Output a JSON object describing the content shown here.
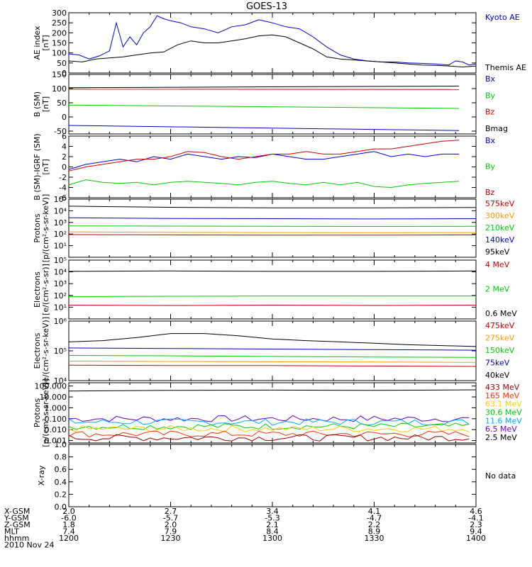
{
  "title": "GOES-13",
  "panels": [
    {
      "id": "ae",
      "ylabel": [
        "AE index",
        "[nT]"
      ],
      "ylim": [
        0,
        300
      ],
      "scale": "linear",
      "yticks": [
        "0",
        "50",
        "100",
        "150",
        "200",
        "250",
        "300"
      ],
      "ytick_values": [
        0,
        50,
        100,
        150,
        200,
        250,
        300
      ],
      "legend": [
        {
          "label": "Kyoto AE",
          "color": "#0000cc"
        },
        {
          "label": "Themis AE",
          "color": "#000000"
        }
      ]
    },
    {
      "id": "b",
      "ylabel": [
        "B (SM)",
        "[nT]"
      ],
      "ylim": [
        -60,
        150
      ],
      "scale": "linear",
      "yticks": [
        "-50",
        "0",
        "50",
        "100",
        "150"
      ],
      "ytick_values": [
        -50,
        0,
        50,
        100,
        150
      ],
      "legend": [
        {
          "label": "Bx",
          "color": "#0000cc"
        },
        {
          "label": "By",
          "color": "#00cc00"
        },
        {
          "label": "Bz",
          "color": "#cc0000"
        },
        {
          "label": "Bmag",
          "color": "#000000"
        }
      ]
    },
    {
      "id": "db",
      "ylabel": [
        "B (SM)-IGRF (SM)",
        "[nT]"
      ],
      "ylim": [
        -6,
        6
      ],
      "scale": "linear",
      "yticks": [
        "-6",
        "-4",
        "-2",
        "0",
        "2",
        "4",
        "6"
      ],
      "ytick_values": [
        -6,
        -4,
        -2,
        0,
        2,
        4,
        6
      ],
      "legend": [
        {
          "label": "Bx",
          "color": "#0000cc"
        },
        {
          "label": "By",
          "color": "#00cc00"
        },
        {
          "label": "Bz",
          "color": "#cc0000"
        }
      ]
    },
    {
      "id": "protons_low",
      "ylabel": [
        "Protons",
        "[p/(cm²-s-sr-keV)]"
      ],
      "ylim": [
        1,
        100000
      ],
      "scale": "log",
      "yticks": [
        "10¹",
        "10²",
        "10³",
        "10⁴",
        "10⁵"
      ],
      "ytick_values": [
        10,
        100,
        1000,
        10000,
        100000
      ],
      "legend": [
        {
          "label": "575keV",
          "color": "#cc0000"
        },
        {
          "label": "300keV",
          "color": "#ff9900"
        },
        {
          "label": "210keV",
          "color": "#00cc00"
        },
        {
          "label": "140keV",
          "color": "#0000cc"
        },
        {
          "label": "95keV",
          "color": "#000000"
        }
      ]
    },
    {
      "id": "electrons_mev",
      "ylabel": [
        "Electrons",
        "[e/(cm²-s-sr)]"
      ],
      "ylim": [
        1,
        100000
      ],
      "scale": "log",
      "yticks": [
        "10¹",
        "10²",
        "10³",
        "10⁴",
        "10⁵"
      ],
      "ytick_values": [
        10,
        100,
        1000,
        10000,
        100000
      ],
      "legend": [
        {
          "label": "4 MeV",
          "color": "#cc0000"
        },
        {
          "label": "2 MeV",
          "color": "#00cc00"
        },
        {
          "label": "0.6 MeV",
          "color": "#000000"
        }
      ]
    },
    {
      "id": "electrons_kev",
      "ylabel": [
        "Electrons",
        "[e/(cm²-s-sr-keV)]"
      ],
      "ylim": [
        10000,
        1000000
      ],
      "scale": "log",
      "yticks": [
        "10⁴",
        "10⁵",
        "10⁶"
      ],
      "ytick_values": [
        10000,
        100000,
        1000000
      ],
      "legend": [
        {
          "label": "475keV",
          "color": "#cc0000"
        },
        {
          "label": "275keV",
          "color": "#ff9900"
        },
        {
          "label": "150keV",
          "color": "#00cc00"
        },
        {
          "label": "75keV",
          "color": "#0000cc"
        },
        {
          "label": "40keV",
          "color": "#000000"
        }
      ]
    },
    {
      "id": "protons_high",
      "ylabel": [
        "Protons",
        "[p/(cm²-s-sr-keV)]"
      ],
      "ylim": [
        0.0006,
        200
      ],
      "scale": "log",
      "yticks": [
        "0.001",
        "0.010",
        "0.100",
        "1.000",
        "10.000",
        "100.000"
      ],
      "ytick_values": [
        0.001,
        0.01,
        0.1,
        1,
        10,
        100
      ],
      "legend": [
        {
          "label": "433 MeV",
          "color": "#990000"
        },
        {
          "label": "165 MeV",
          "color": "#ff3300"
        },
        {
          "label": "63.1 MeV",
          "color": "#ffcc00"
        },
        {
          "label": "30.6 MeV",
          "color": "#00cc00"
        },
        {
          "label": "11.6 MeV",
          "color": "#00aaff"
        },
        {
          "label": "6.5 MeV",
          "color": "#6600cc"
        },
        {
          "label": "2.5 MeV",
          "color": "#000000"
        }
      ]
    },
    {
      "id": "xray",
      "ylabel": [
        "X-ray"
      ],
      "ylim": [
        0,
        1
      ],
      "scale": "linear",
      "yticks": [
        "0.0",
        "0.2",
        "0.4",
        "0.6",
        "0.8",
        "1.0"
      ],
      "ytick_values": [
        0,
        0.2,
        0.4,
        0.6,
        0.8,
        1
      ],
      "legend": [
        {
          "label": "No data",
          "color": "#000000"
        }
      ]
    }
  ],
  "footer": {
    "rows": [
      {
        "label": "X-GSM",
        "values": [
          "2.0",
          "2.7",
          "3.4",
          "4.1",
          "4.6"
        ]
      },
      {
        "label": "Y-GSM",
        "values": [
          "-6.0",
          "-5.7",
          "-5.3",
          "-4.7",
          "-4.1"
        ]
      },
      {
        "label": "Z-GSM",
        "values": [
          "1.8",
          "2.0",
          "2.1",
          "2.2",
          "2.3"
        ]
      },
      {
        "label": "MLT",
        "values": [
          "7.4",
          "7.9",
          "8.4",
          "8.9",
          "9.4"
        ]
      },
      {
        "label": "hhmm",
        "values": [
          "1200",
          "1230",
          "1300",
          "1330",
          "1400"
        ]
      }
    ],
    "date": "2010 Nov 24"
  },
  "chart_data": {
    "type": "line",
    "title": "GOES-13",
    "time_hhmm": [
      "1200",
      "1230",
      "1300",
      "1330",
      "1400"
    ],
    "x_minutes_since_1200": [
      0,
      30,
      60,
      90,
      120
    ],
    "panels": {
      "ae": {
        "series": [
          {
            "name": "Kyoto AE",
            "x": [
              0,
              3,
              6,
              9,
              12,
              14,
              16,
              18,
              20,
              22,
              24,
              26,
              28,
              30,
              33,
              36,
              40,
              44,
              48,
              52,
              56,
              60,
              64,
              68,
              72,
              76,
              80,
              84,
              88,
              92,
              96,
              100,
              104,
              108,
              112,
              114,
              116,
              118,
              120
            ],
            "y": [
              95,
              90,
              70,
              85,
              110,
              250,
              130,
              180,
              140,
              200,
              230,
              285,
              270,
              260,
              250,
              230,
              220,
              200,
              230,
              240,
              265,
              250,
              230,
              220,
              180,
              130,
              90,
              70,
              60,
              55,
              55,
              50,
              48,
              45,
              40,
              60,
              55,
              40,
              45
            ]
          },
          {
            "name": "Themis AE",
            "x": [
              0,
              4,
              8,
              12,
              16,
              20,
              24,
              28,
              32,
              36,
              40,
              44,
              48,
              52,
              56,
              60,
              64,
              68,
              72,
              76,
              80,
              84,
              88,
              92,
              96,
              100,
              104,
              108,
              112,
              116,
              120
            ],
            "y": [
              60,
              55,
              70,
              75,
              80,
              90,
              100,
              105,
              140,
              160,
              150,
              150,
              160,
              170,
              185,
              190,
              180,
              150,
              120,
              80,
              70,
              65,
              60,
              55,
              50,
              45,
              40,
              38,
              35,
              30,
              35
            ]
          }
        ]
      },
      "b": {
        "series": [
          {
            "name": "Bmag",
            "x": [
              0,
              115
            ],
            "y": [
              103,
              109
            ]
          },
          {
            "name": "Bz",
            "x": [
              0,
              115
            ],
            "y": [
              98,
              97
            ]
          },
          {
            "name": "By",
            "x": [
              0,
              115
            ],
            "y": [
              42,
              30
            ]
          },
          {
            "name": "Bx",
            "x": [
              0,
              115
            ],
            "y": [
              -30,
              -48
            ]
          }
        ]
      },
      "db": {
        "series": [
          {
            "name": "Bx",
            "x": [
              0,
              5,
              10,
              15,
              20,
              25,
              30,
              35,
              40,
              45,
              50,
              55,
              60,
              65,
              70,
              75,
              80,
              85,
              90,
              95,
              100,
              105,
              110,
              115
            ],
            "y": [
              -0.5,
              0.5,
              1.0,
              1.5,
              1.0,
              2.0,
              1.5,
              2.5,
              2.0,
              1.5,
              2.0,
              1.8,
              2.5,
              2.0,
              1.5,
              1.5,
              2.0,
              2.5,
              3.0,
              2.0,
              2.5,
              2.0,
              2.5,
              2.5
            ]
          },
          {
            "name": "By",
            "x": [
              0,
              5,
              10,
              15,
              20,
              25,
              30,
              35,
              40,
              45,
              50,
              55,
              60,
              65,
              70,
              75,
              80,
              85,
              90,
              95,
              100,
              105,
              110,
              115
            ],
            "y": [
              -3.5,
              -2.5,
              -3.0,
              -3.2,
              -3.0,
              -3.5,
              -3.0,
              -2.8,
              -3.0,
              -3.2,
              -3.5,
              -3.0,
              -2.8,
              -3.2,
              -3.5,
              -3.0,
              -3.5,
              -3.0,
              -3.8,
              -4.0,
              -3.5,
              -3.2,
              -3.0,
              -2.8
            ]
          },
          {
            "name": "Bz",
            "x": [
              0,
              5,
              10,
              15,
              20,
              25,
              30,
              35,
              40,
              45,
              50,
              55,
              60,
              65,
              70,
              75,
              80,
              85,
              90,
              95,
              100,
              105,
              110,
              115
            ],
            "y": [
              -0.8,
              0,
              0.5,
              1.0,
              1.5,
              1.5,
              2.0,
              3.0,
              2.8,
              2.0,
              1.5,
              2.0,
              2.5,
              2.5,
              3.0,
              2.5,
              2.5,
              3.0,
              3.5,
              3.5,
              4.0,
              4.5,
              5.0,
              5.2
            ]
          }
        ]
      },
      "protons_low": {
        "series": [
          {
            "name": "95keV",
            "x": [
              0,
              30,
              60,
              90,
              120
            ],
            "y": [
              25000,
              20000,
              18000,
              18000,
              19000
            ]
          },
          {
            "name": "140keV",
            "x": [
              0,
              30,
              60,
              90,
              120
            ],
            "y": [
              2500,
              2200,
              2100,
              2000,
              2100
            ]
          },
          {
            "name": "210keV",
            "x": [
              0,
              30,
              60,
              90,
              120
            ],
            "y": [
              500,
              480,
              470,
              450,
              460
            ]
          },
          {
            "name": "300keV",
            "x": [
              0,
              30,
              60,
              90,
              120
            ],
            "y": [
              150,
              140,
              135,
              130,
              135
            ]
          },
          {
            "name": "575keV",
            "x": [
              0,
              30,
              60,
              90,
              120
            ],
            "y": [
              90,
              85,
              80,
              80,
              85
            ]
          }
        ]
      },
      "electrons_mev": {
        "series": [
          {
            "name": "0.6 MeV",
            "x": [
              0,
              30,
              60,
              90,
              120
            ],
            "y": [
              11000,
              12000,
              11000,
              11000,
              12000
            ]
          },
          {
            "name": "2 MeV",
            "x": [
              0,
              30,
              60,
              90,
              120
            ],
            "y": [
              80,
              85,
              90,
              90,
              90
            ]
          },
          {
            "name": "4 MeV",
            "x": [
              0,
              30,
              60,
              90,
              120
            ],
            "y": [
              15,
              14,
              15,
              14,
              15
            ]
          }
        ]
      },
      "electrons_kev": {
        "series": [
          {
            "name": "40keV",
            "x": [
              0,
              10,
              20,
              30,
              40,
              50,
              60,
              70,
              80,
              90,
              100,
              110,
              120
            ],
            "y": [
              200000,
              220000,
              280000,
              380000,
              380000,
              320000,
              250000,
              220000,
              200000,
              180000,
              160000,
              150000,
              140000
            ]
          },
          {
            "name": "75keV",
            "x": [
              0,
              30,
              60,
              90,
              120
            ],
            "y": [
              125000,
              120000,
              115000,
              110000,
              105000
            ]
          },
          {
            "name": "150keV",
            "x": [
              0,
              30,
              60,
              90,
              120
            ],
            "y": [
              70000,
              68000,
              65000,
              62000,
              60000
            ]
          },
          {
            "name": "275keV",
            "x": [
              0,
              30,
              60,
              90,
              120
            ],
            "y": [
              45000,
              44000,
              43000,
              42000,
              41000
            ]
          },
          {
            "name": "475keV",
            "x": [
              0,
              30,
              60,
              90,
              120
            ],
            "y": [
              33000,
              32000,
              32000,
              31000,
              30000
            ]
          }
        ]
      },
      "protons_high": {
        "series": [
          {
            "name": "2.5 MeV",
            "x": [
              0,
              30,
              60,
              90,
              120
            ],
            "y": [
              35,
              40,
              42,
              40,
              45
            ]
          },
          {
            "name": "6.5 MeV",
            "noise": true,
            "base": 0.1
          },
          {
            "name": "11.6 MeV",
            "noise": true,
            "base": 0.05
          },
          {
            "name": "30.6 MeV",
            "noise": true,
            "base": 0.02
          },
          {
            "name": "63.1 MeV",
            "noise": true,
            "base": 0.012
          },
          {
            "name": "165 MeV",
            "noise": true,
            "base": 0.004
          },
          {
            "name": "433 MeV",
            "noise": true,
            "base": 0.0018
          }
        ]
      },
      "xray": {
        "series": []
      }
    }
  }
}
